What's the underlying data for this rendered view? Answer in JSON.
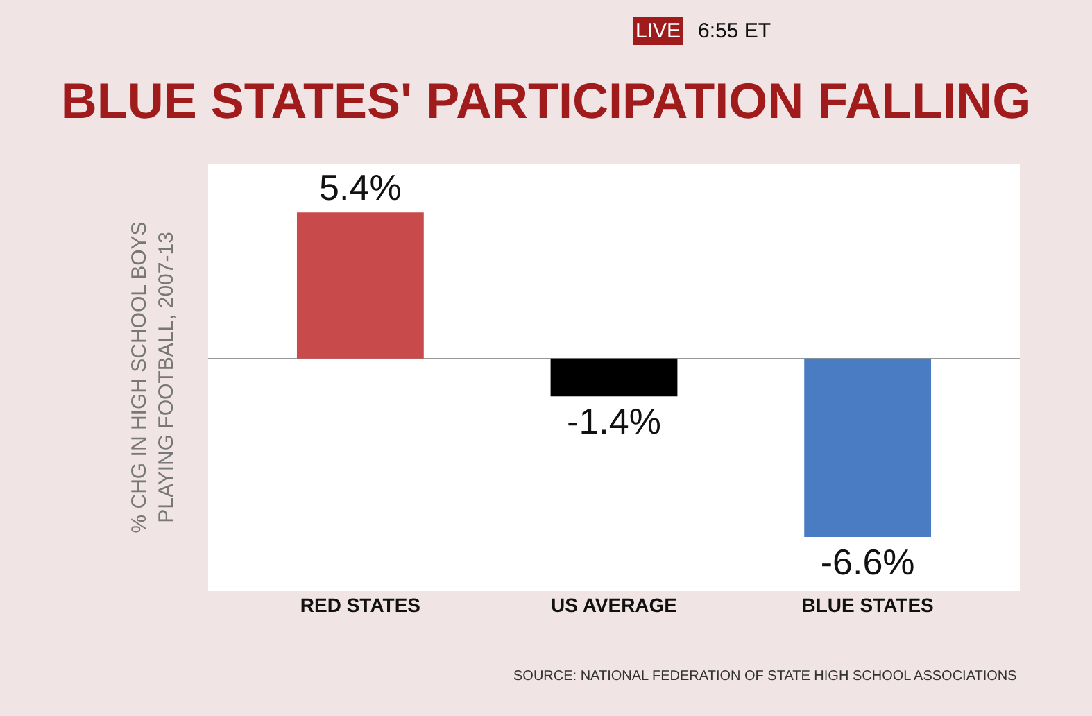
{
  "chart_data": {
    "type": "bar",
    "title": "BLUE STATES' PARTICIPATION FALLING",
    "ylabel": "% CHG IN HIGH SCHOOL BOYS\nPLAYING FOOTBALL, 2007-13",
    "categories": [
      "RED STATES",
      "US AVERAGE",
      "BLUE STATES"
    ],
    "values": [
      5.4,
      -1.4,
      -6.6
    ],
    "colors": [
      "#c84a4a",
      "#000000",
      "#4a7cc4"
    ],
    "value_labels": [
      "5.4%",
      "-1.4%",
      "-6.6%"
    ],
    "annotations": [
      "LIVE",
      "6:55 ET",
      "SOURCE: NATIONAL FEDERATION OF STATE HIGH SCHOOL ASSOCIATIONS"
    ],
    "grid": false,
    "legend": false
  }
}
